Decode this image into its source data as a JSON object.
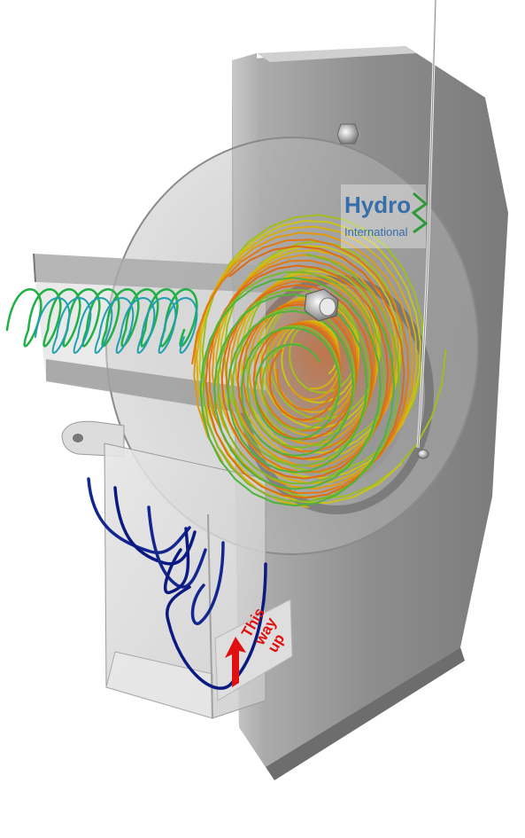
{
  "logo": {
    "name": "Hydro",
    "subtitle": "International"
  },
  "orientation_label": {
    "line1": "This",
    "line2": "way",
    "line3": "up"
  },
  "colors": {
    "wall": "#8f8f8f",
    "flow_slow": "#0a1a80",
    "flow_mid": "#1fb046",
    "flow_fast": "#e06a12",
    "label_red": "#e01010",
    "logo_blue": "#1c5fa6",
    "logo_green": "#2f9a3a"
  },
  "icons": [
    "up-arrow-icon",
    "bolt-icon",
    "wave-logo-icon"
  ]
}
